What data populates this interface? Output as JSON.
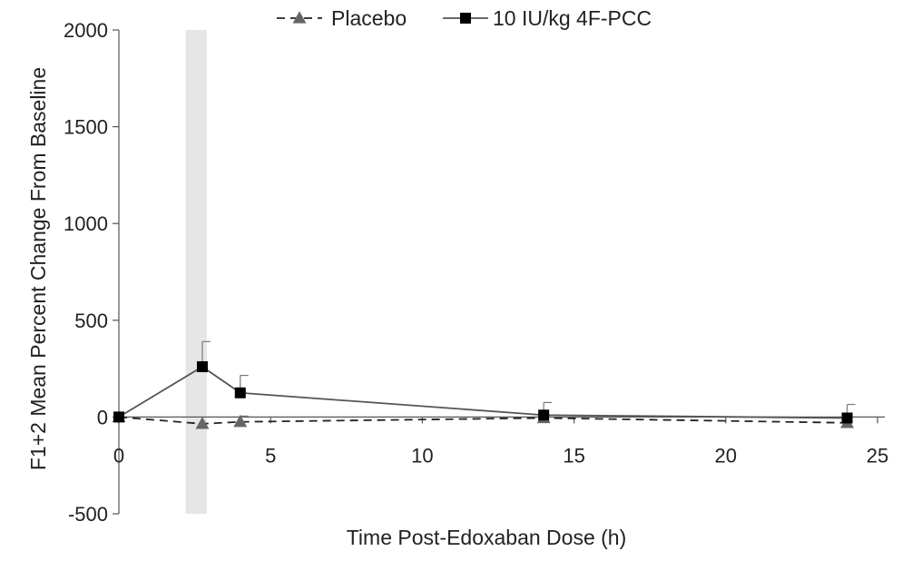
{
  "chart_data": {
    "type": "line",
    "xlabel": "Time Post-Edoxaban Dose (h)",
    "ylabel": "F1+2 Mean Percent Change From Baseline",
    "xlim": [
      0,
      25
    ],
    "ylim": [
      -500,
      2000
    ],
    "x_ticks": [
      0,
      5,
      10,
      15,
      20,
      25
    ],
    "y_ticks": [
      -500,
      0,
      500,
      1000,
      1500,
      2000
    ],
    "x_tick_labels": [
      "0",
      "5",
      "10",
      "15",
      "20",
      "25"
    ],
    "y_tick_labels": [
      "-500",
      "0",
      "500",
      "1000",
      "1500",
      "2000"
    ],
    "grid": false,
    "legend_position": "top",
    "shaded_region": {
      "x_start": 2.2,
      "x_end": 2.9,
      "color": "#e6e6e6"
    },
    "series": [
      {
        "name": "Placebo",
        "marker": "triangle",
        "line_style": "dashed",
        "color": "#222222",
        "marker_color": "#666666",
        "x": [
          0,
          2.75,
          4,
          14,
          24
        ],
        "y": [
          0,
          -35,
          -25,
          -5,
          -30
        ],
        "error_upper": [
          0,
          0,
          30,
          0,
          0
        ]
      },
      {
        "name": "10 IU/kg 4F-PCC",
        "marker": "square",
        "line_style": "solid",
        "color": "#555555",
        "marker_color": "#000000",
        "x": [
          0,
          2.75,
          4,
          14,
          24
        ],
        "y": [
          0,
          260,
          125,
          10,
          -5
        ],
        "error_upper": [
          0,
          130,
          90,
          65,
          70
        ]
      }
    ]
  }
}
